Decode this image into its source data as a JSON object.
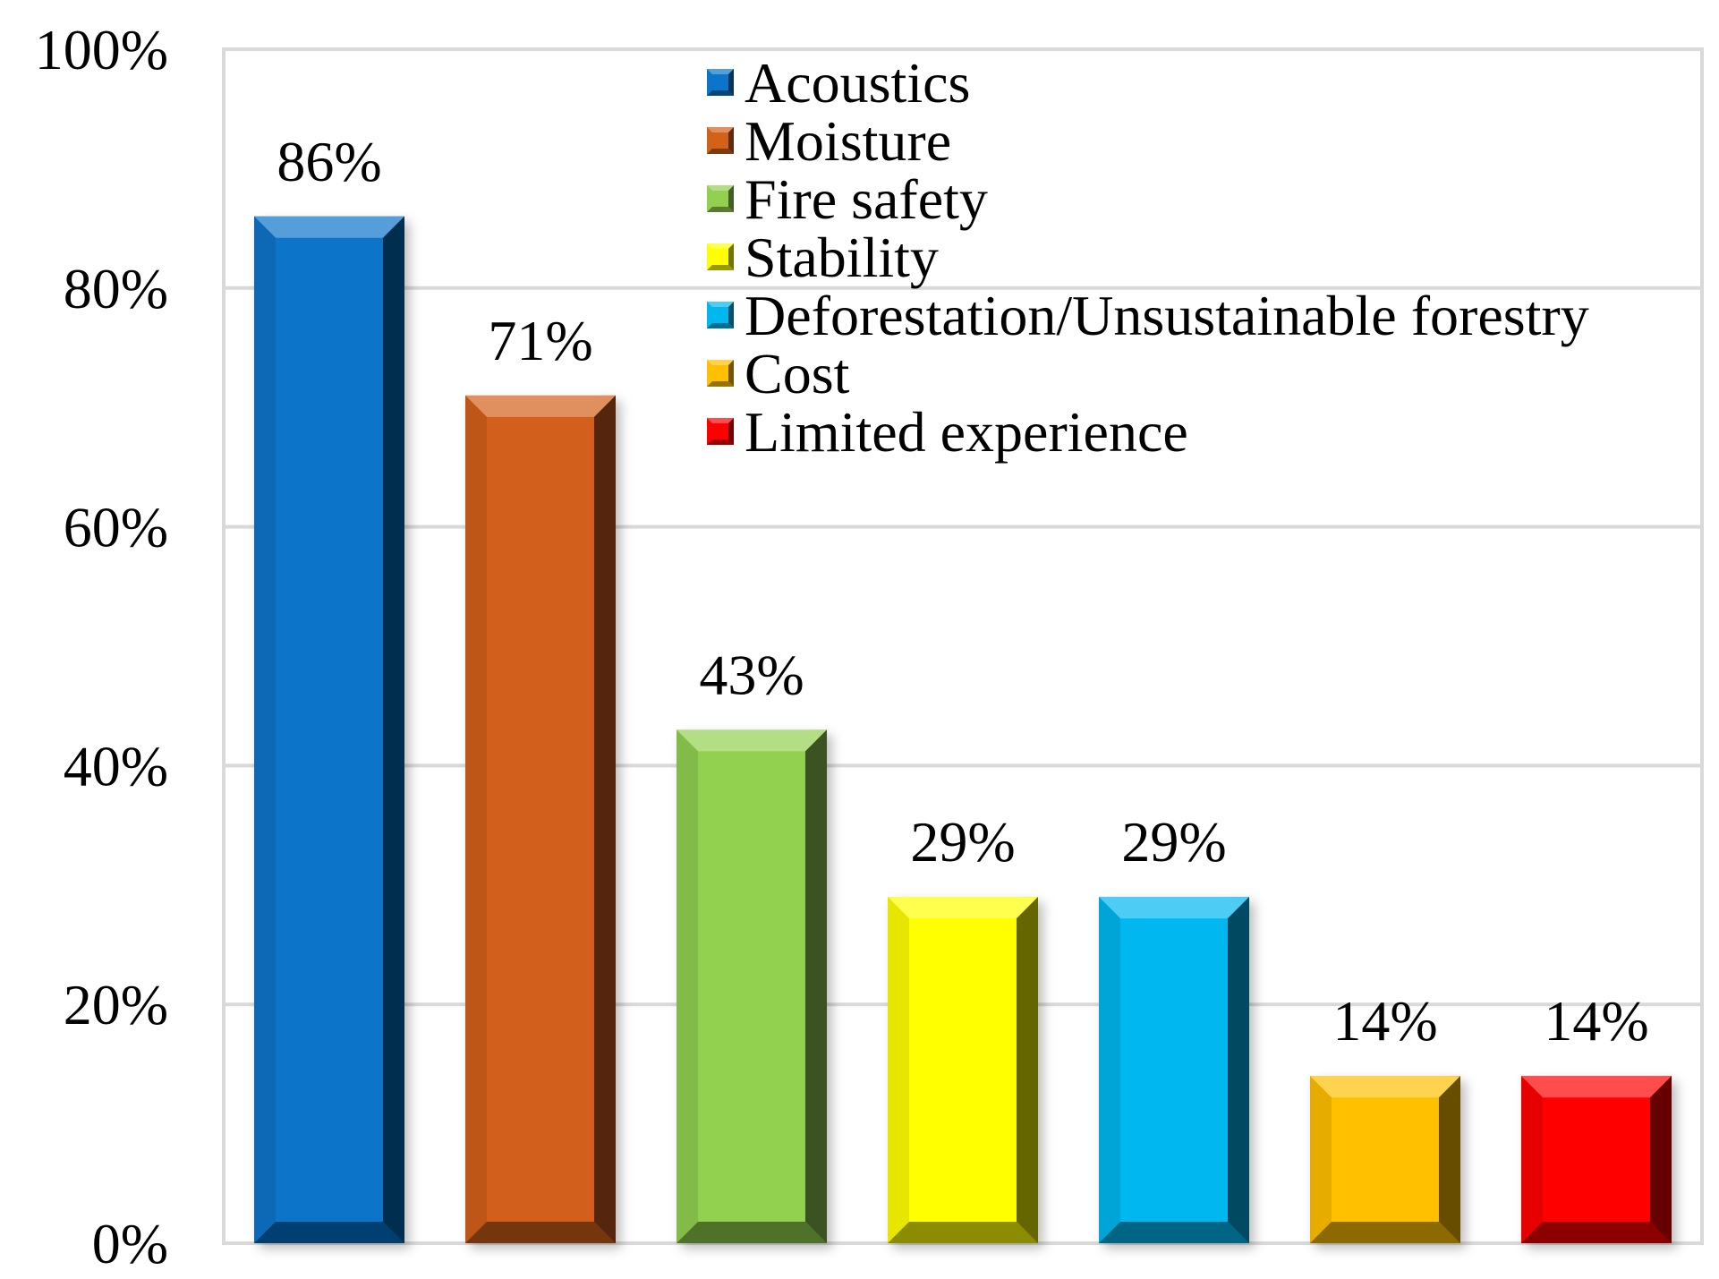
{
  "chart_data": {
    "type": "bar",
    "title": "",
    "xlabel": "",
    "ylabel": "",
    "ylim": [
      0,
      100
    ],
    "y_ticks": [
      0,
      20,
      40,
      60,
      80,
      100
    ],
    "y_tick_labels": [
      "0%",
      "20%",
      "40%",
      "60%",
      "80%",
      "100%"
    ],
    "grid": true,
    "legend_position": "top-right",
    "categories": [
      "Acoustics",
      "Moisture",
      "Fire safety",
      "Stability",
      "Deforestation/Unsustainable forestry",
      "Cost",
      "Limited experience"
    ],
    "values": [
      86,
      71,
      43,
      29,
      29,
      14,
      14
    ],
    "data_labels": [
      "86%",
      "71%",
      "43%",
      "29%",
      "29%",
      "14%",
      "14%"
    ],
    "colors": [
      "#0a75c9",
      "#d2611a",
      "#92d050",
      "#ffff00",
      "#00b7f0",
      "#ffc000",
      "#ff0000"
    ]
  }
}
